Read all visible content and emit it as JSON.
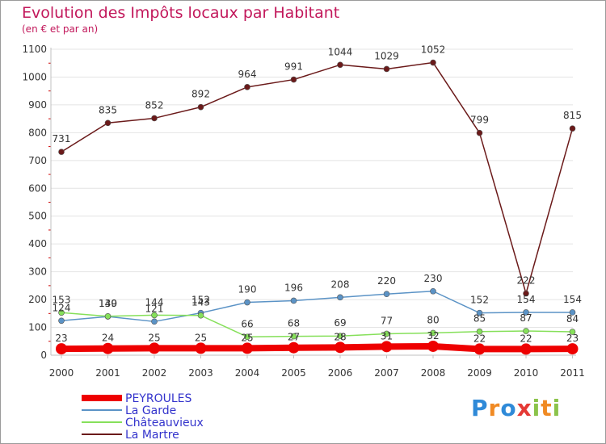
{
  "header": {
    "title": "Evolution des Impôts locaux par Habitant",
    "subtitle": "(en € et par an)"
  },
  "colors": {
    "peyroules": "#ee0000",
    "la_garde": "#5b93c6",
    "chateauvieux": "#86e05a",
    "la_martre": "#6b1a1a",
    "axis": "#c0c0c0",
    "grid": "#e4e4e4",
    "title": "#c2185b"
  },
  "logo": {
    "text": "Proxiti",
    "letters": [
      {
        "ch": "P",
        "color": "#2f8ad8"
      },
      {
        "ch": "r",
        "color": "#f08a24"
      },
      {
        "ch": "o",
        "color": "#2f8ad8"
      },
      {
        "ch": "x",
        "color": "#e53935"
      },
      {
        "ch": "i",
        "color": "#8bc34a"
      },
      {
        "ch": "t",
        "color": "#f08a24"
      },
      {
        "ch": "i",
        "color": "#8bc34a"
      }
    ]
  },
  "chart_data": {
    "type": "line",
    "title": "Evolution des Impôts locaux par Habitant",
    "subtitle": "(en € et par an)",
    "xlabel": "",
    "ylabel": "",
    "x": [
      "2000",
      "2001",
      "2002",
      "2003",
      "2004",
      "2005",
      "2006",
      "2007",
      "2008",
      "2009",
      "2010",
      "2011"
    ],
    "ylim": [
      0,
      1100
    ],
    "yticks": [
      0,
      100,
      200,
      300,
      400,
      500,
      600,
      700,
      800,
      900,
      1000,
      1100
    ],
    "grid": true,
    "legend_position": "bottom-left",
    "series": [
      {
        "name": "PEYROULES",
        "color": "#ee0000",
        "values": [
          23,
          24,
          25,
          25,
          25,
          27,
          28,
          31,
          32,
          22,
          22,
          23
        ]
      },
      {
        "name": "La Garde",
        "color": "#5b93c6",
        "values": [
          124,
          139,
          121,
          152,
          190,
          196,
          208,
          220,
          230,
          152,
          154,
          154
        ]
      },
      {
        "name": "Châteauvieux",
        "color": "#86e05a",
        "values": [
          153,
          140,
          144,
          143,
          66,
          68,
          69,
          77,
          80,
          85,
          87,
          84
        ]
      },
      {
        "name": "La Martre",
        "color": "#6b1a1a",
        "values": [
          731,
          835,
          852,
          892,
          964,
          991,
          1044,
          1029,
          1052,
          799,
          222,
          815
        ]
      }
    ]
  }
}
